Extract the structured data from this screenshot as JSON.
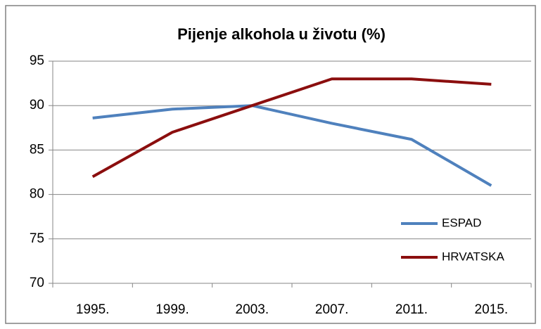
{
  "chart_data": {
    "type": "line",
    "title": "Pijenje alkohola u životu (%)",
    "categories": [
      "1995.",
      "1999.",
      "2003.",
      "2007.",
      "2011.",
      "2015."
    ],
    "series": [
      {
        "name": "ESPAD",
        "color": "#4f81bd",
        "values": [
          88.6,
          89.6,
          90,
          88,
          86.2,
          81
        ]
      },
      {
        "name": "HRVATSKA",
        "color": "#8b0e0e",
        "values": [
          82,
          87,
          90,
          93,
          93,
          92.4
        ]
      }
    ],
    "ylim": [
      70,
      95
    ],
    "yticks": [
      70,
      75,
      80,
      85,
      90,
      95
    ],
    "grid": true,
    "legend": "right"
  }
}
